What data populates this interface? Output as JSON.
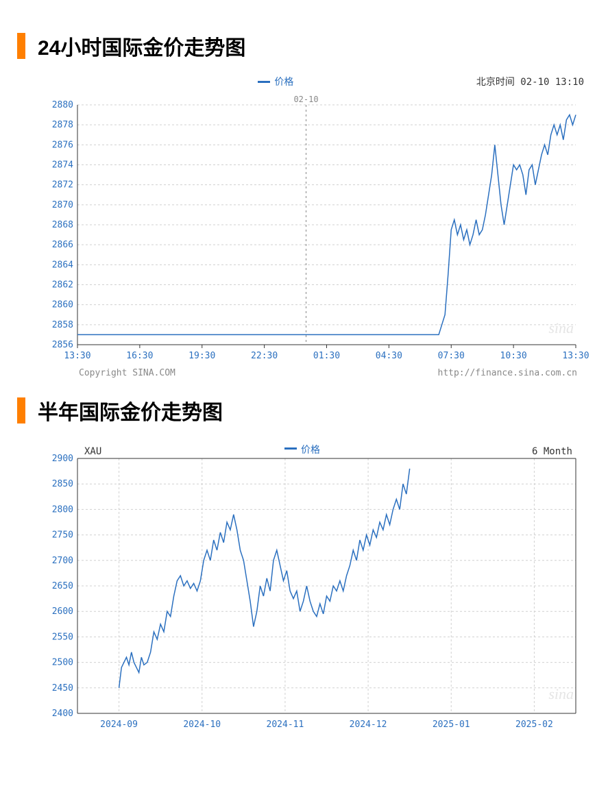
{
  "chart24h": {
    "title": "24小时国际金价走势图",
    "type": "line",
    "legend_label": "价格",
    "timestamp_label": "北京时间",
    "timestamp_value": "02-10 13:10",
    "date_marker": "02-10",
    "copyright_left": "Copyright  SINA.COM",
    "copyright_right": "http://finance.sina.com.cn",
    "watermark": "sina",
    "ylim": [
      2856,
      2880
    ],
    "ytick_step": 2,
    "yticks": [
      2856,
      2858,
      2860,
      2862,
      2864,
      2866,
      2868,
      2870,
      2872,
      2874,
      2876,
      2878,
      2880
    ],
    "xlabels": [
      "13:30",
      "16:30",
      "19:30",
      "22:30",
      "01:30",
      "04:30",
      "07:30",
      "10:30",
      "13:30"
    ],
    "date_marker_x_index": 3.67,
    "line_color": "#2a6fbf",
    "grid_color": "#d0d0d0",
    "axis_color": "#333333",
    "label_color": "#2a6fbf",
    "font_family": "monospace",
    "label_fontsize": 13,
    "background_color": "#ffffff",
    "line_width": 1.5,
    "data": [
      [
        0.0,
        2857.0
      ],
      [
        0.5,
        2857.0
      ],
      [
        1.0,
        2857.0
      ],
      [
        1.5,
        2857.0
      ],
      [
        2.0,
        2857.0
      ],
      [
        2.5,
        2857.0
      ],
      [
        3.0,
        2857.0
      ],
      [
        3.5,
        2857.0
      ],
      [
        4.0,
        2857.0
      ],
      [
        4.5,
        2857.0
      ],
      [
        5.0,
        2857.0
      ],
      [
        5.5,
        2857.0
      ],
      [
        5.8,
        2857.0
      ],
      [
        5.9,
        2859.0
      ],
      [
        5.95,
        2863.0
      ],
      [
        6.0,
        2867.5
      ],
      [
        6.05,
        2868.5
      ],
      [
        6.1,
        2867.0
      ],
      [
        6.15,
        2868.0
      ],
      [
        6.2,
        2866.5
      ],
      [
        6.25,
        2867.5
      ],
      [
        6.3,
        2866.0
      ],
      [
        6.35,
        2867.0
      ],
      [
        6.4,
        2868.5
      ],
      [
        6.45,
        2867.0
      ],
      [
        6.5,
        2867.5
      ],
      [
        6.55,
        2869.0
      ],
      [
        6.6,
        2871.0
      ],
      [
        6.65,
        2873.0
      ],
      [
        6.7,
        2876.0
      ],
      [
        6.75,
        2873.0
      ],
      [
        6.8,
        2870.0
      ],
      [
        6.85,
        2868.0
      ],
      [
        6.9,
        2870.0
      ],
      [
        6.95,
        2872.0
      ],
      [
        7.0,
        2874.0
      ],
      [
        7.05,
        2873.5
      ],
      [
        7.1,
        2874.0
      ],
      [
        7.15,
        2873.0
      ],
      [
        7.2,
        2871.0
      ],
      [
        7.25,
        2873.5
      ],
      [
        7.3,
        2874.0
      ],
      [
        7.35,
        2872.0
      ],
      [
        7.4,
        2873.5
      ],
      [
        7.45,
        2875.0
      ],
      [
        7.5,
        2876.0
      ],
      [
        7.55,
        2875.0
      ],
      [
        7.6,
        2877.0
      ],
      [
        7.65,
        2878.0
      ],
      [
        7.7,
        2877.0
      ],
      [
        7.75,
        2878.0
      ],
      [
        7.8,
        2876.5
      ],
      [
        7.85,
        2878.5
      ],
      [
        7.9,
        2879.0
      ],
      [
        7.95,
        2878.0
      ],
      [
        8.0,
        2879.0
      ]
    ]
  },
  "chart6m": {
    "title": "半年国际金价走势图",
    "type": "line",
    "legend_label": "价格",
    "top_left_label": "XAU",
    "top_right_label": "6 Month",
    "watermark": "sina",
    "ylim": [
      2400,
      2900
    ],
    "ytick_step": 50,
    "yticks": [
      2400,
      2450,
      2500,
      2550,
      2600,
      2650,
      2700,
      2750,
      2800,
      2850,
      2900
    ],
    "xlabels": [
      "2024-09",
      "2024-10",
      "2024-11",
      "2024-12",
      "2025-01",
      "2025-02"
    ],
    "line_color": "#2a6fbf",
    "grid_color": "#d0d0d0",
    "axis_color": "#333333",
    "label_color": "#2a6fbf",
    "font_family": "monospace",
    "label_fontsize": 13,
    "background_color": "#ffffff",
    "line_width": 1.5,
    "data": [
      [
        0.0,
        2450
      ],
      [
        0.03,
        2490
      ],
      [
        0.06,
        2500
      ],
      [
        0.09,
        2510
      ],
      [
        0.12,
        2495
      ],
      [
        0.15,
        2520
      ],
      [
        0.18,
        2500
      ],
      [
        0.21,
        2490
      ],
      [
        0.24,
        2480
      ],
      [
        0.27,
        2510
      ],
      [
        0.3,
        2495
      ],
      [
        0.34,
        2500
      ],
      [
        0.38,
        2520
      ],
      [
        0.42,
        2560
      ],
      [
        0.46,
        2545
      ],
      [
        0.5,
        2575
      ],
      [
        0.54,
        2560
      ],
      [
        0.58,
        2600
      ],
      [
        0.62,
        2590
      ],
      [
        0.66,
        2630
      ],
      [
        0.7,
        2660
      ],
      [
        0.74,
        2670
      ],
      [
        0.78,
        2650
      ],
      [
        0.82,
        2660
      ],
      [
        0.86,
        2645
      ],
      [
        0.9,
        2655
      ],
      [
        0.94,
        2640
      ],
      [
        0.98,
        2660
      ],
      [
        1.02,
        2700
      ],
      [
        1.06,
        2720
      ],
      [
        1.1,
        2700
      ],
      [
        1.14,
        2740
      ],
      [
        1.18,
        2720
      ],
      [
        1.22,
        2755
      ],
      [
        1.26,
        2735
      ],
      [
        1.3,
        2775
      ],
      [
        1.34,
        2760
      ],
      [
        1.38,
        2790
      ],
      [
        1.42,
        2760
      ],
      [
        1.46,
        2720
      ],
      [
        1.5,
        2700
      ],
      [
        1.54,
        2660
      ],
      [
        1.58,
        2620
      ],
      [
        1.62,
        2570
      ],
      [
        1.66,
        2600
      ],
      [
        1.7,
        2650
      ],
      [
        1.74,
        2630
      ],
      [
        1.78,
        2665
      ],
      [
        1.82,
        2640
      ],
      [
        1.86,
        2700
      ],
      [
        1.9,
        2720
      ],
      [
        1.94,
        2690
      ],
      [
        1.98,
        2660
      ],
      [
        2.02,
        2680
      ],
      [
        2.06,
        2640
      ],
      [
        2.1,
        2625
      ],
      [
        2.14,
        2640
      ],
      [
        2.18,
        2600
      ],
      [
        2.22,
        2620
      ],
      [
        2.26,
        2650
      ],
      [
        2.3,
        2620
      ],
      [
        2.34,
        2600
      ],
      [
        2.38,
        2590
      ],
      [
        2.42,
        2615
      ],
      [
        2.46,
        2595
      ],
      [
        2.5,
        2630
      ],
      [
        2.54,
        2620
      ],
      [
        2.58,
        2650
      ],
      [
        2.62,
        2640
      ],
      [
        2.66,
        2660
      ],
      [
        2.7,
        2640
      ],
      [
        2.74,
        2670
      ],
      [
        2.78,
        2690
      ],
      [
        2.82,
        2720
      ],
      [
        2.86,
        2700
      ],
      [
        2.9,
        2740
      ],
      [
        2.94,
        2720
      ],
      [
        2.98,
        2750
      ],
      [
        3.02,
        2730
      ],
      [
        3.06,
        2760
      ],
      [
        3.1,
        2745
      ],
      [
        3.14,
        2775
      ],
      [
        3.18,
        2760
      ],
      [
        3.22,
        2790
      ],
      [
        3.26,
        2770
      ],
      [
        3.3,
        2800
      ],
      [
        3.34,
        2820
      ],
      [
        3.38,
        2800
      ],
      [
        3.42,
        2850
      ],
      [
        3.46,
        2830
      ],
      [
        3.5,
        2880
      ]
    ]
  },
  "accent_color": "#ff7f00"
}
